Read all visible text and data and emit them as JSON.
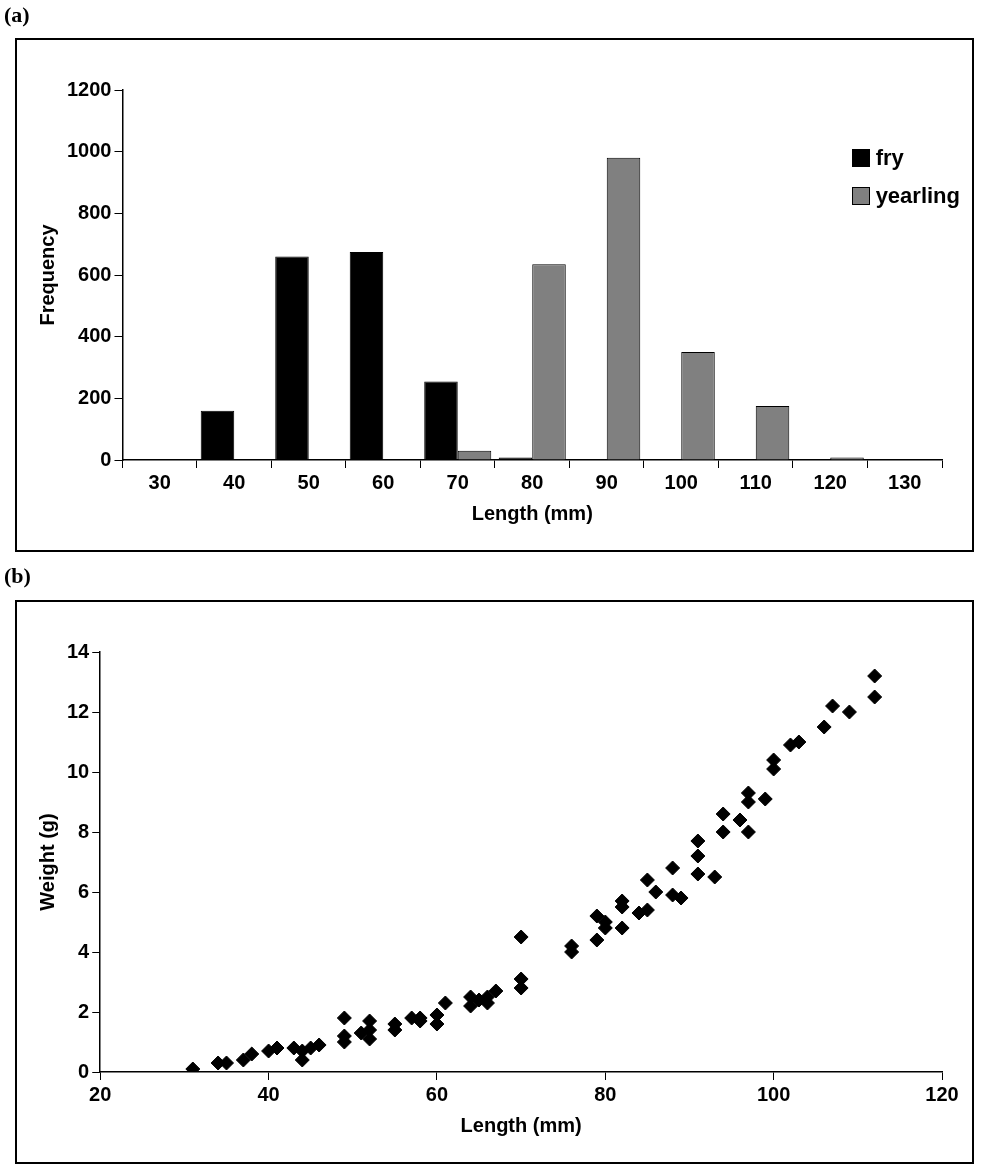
{
  "chart_data": [
    {
      "type": "bar",
      "title": "(a)",
      "xlabel": "Length (mm)",
      "ylabel": "Frequency",
      "categories": [
        "30",
        "40",
        "50",
        "60",
        "70",
        "80",
        "90",
        "100",
        "110",
        "120",
        "130"
      ],
      "series": [
        {
          "name": "fry",
          "color": "#000000",
          "values": [
            null,
            160,
            660,
            675,
            255,
            8,
            null,
            null,
            null,
            null,
            null
          ]
        },
        {
          "name": "yearling",
          "color": "#808080",
          "values": [
            null,
            null,
            null,
            null,
            30,
            635,
            980,
            350,
            175,
            8,
            null
          ]
        }
      ],
      "ylim": [
        0,
        1200
      ],
      "yticks": [
        0,
        200,
        400,
        600,
        800,
        1000,
        1200
      ],
      "legend": "top right"
    },
    {
      "type": "scatter",
      "title": "(b)",
      "xlabel": "Length (mm)",
      "ylabel": "Weight (g)",
      "marker": "diamond",
      "color": "#000000",
      "x": [
        31,
        34,
        35,
        37,
        38,
        40,
        41,
        43,
        44,
        44,
        45,
        46,
        49,
        49,
        49,
        51,
        52,
        52,
        52,
        55,
        55,
        57,
        58,
        58,
        60,
        60,
        61,
        64,
        64,
        65,
        66,
        66,
        67,
        70,
        70,
        70,
        76,
        76,
        79,
        79,
        80,
        80,
        82,
        82,
        82,
        84,
        85,
        85,
        86,
        88,
        88,
        89,
        91,
        91,
        91,
        93,
        94,
        94,
        96,
        97,
        97,
        97,
        99,
        100,
        100,
        102,
        103,
        106,
        107,
        109,
        112,
        112
      ],
      "values": [
        0.1,
        0.3,
        0.3,
        0.4,
        0.6,
        0.7,
        0.8,
        0.8,
        0.4,
        0.7,
        0.8,
        0.9,
        1.8,
        1.0,
        1.2,
        1.3,
        1.7,
        1.1,
        1.4,
        1.4,
        1.6,
        1.8,
        1.7,
        1.8,
        1.6,
        1.9,
        2.3,
        2.5,
        2.2,
        2.4,
        2.3,
        2.5,
        2.7,
        4.5,
        3.1,
        2.8,
        4.2,
        4.0,
        4.4,
        5.2,
        4.8,
        5.0,
        5.5,
        4.8,
        5.7,
        5.3,
        6.4,
        5.4,
        6.0,
        6.8,
        5.9,
        5.8,
        7.7,
        7.2,
        6.6,
        6.5,
        8.0,
        8.6,
        8.4,
        9.3,
        8.0,
        9.0,
        9.1,
        10.1,
        10.4,
        10.9,
        11.0,
        11.5,
        12.2,
        12.0,
        13.2,
        12.5
      ],
      "xlim": [
        20,
        120
      ],
      "xticks": [
        20,
        40,
        60,
        80,
        100,
        120
      ],
      "ylim": [
        0,
        14
      ],
      "yticks": [
        0,
        2,
        4,
        6,
        8,
        10,
        12,
        14
      ]
    }
  ]
}
